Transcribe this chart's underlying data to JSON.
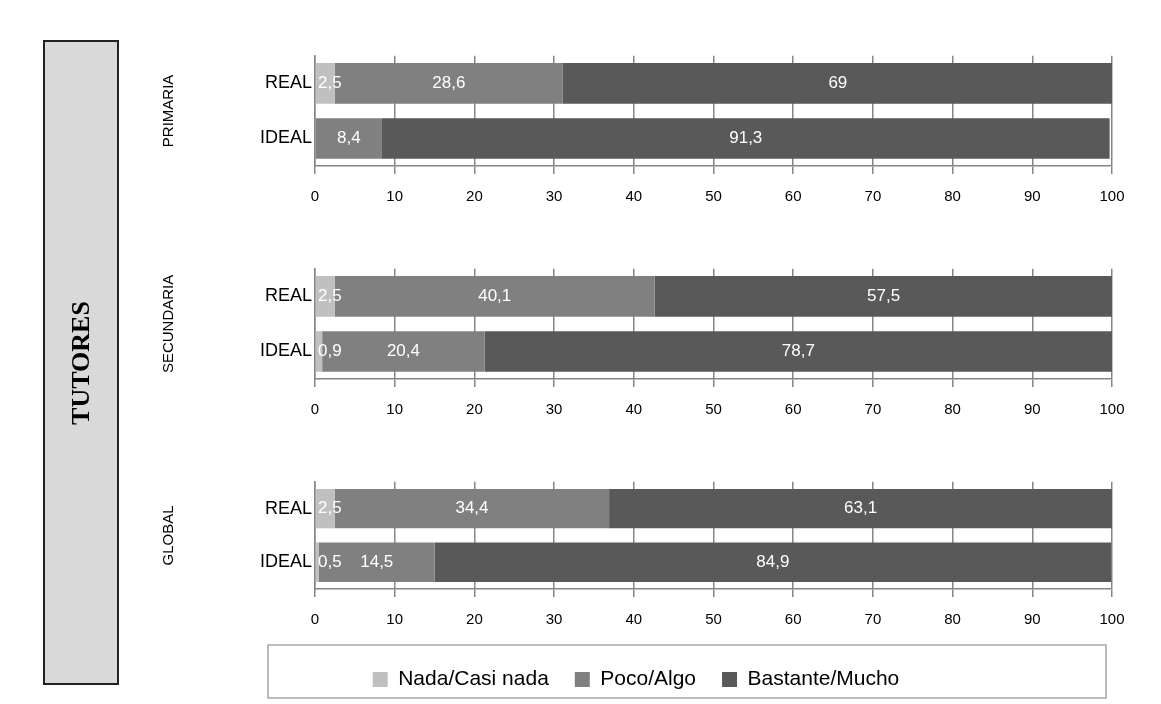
{
  "chart_data": [
    {
      "type": "other",
      "title": "TUTORES"
    },
    {
      "type": "bar",
      "orientation": "horizontal",
      "stacked": true,
      "ylabel": "PRIMARIA",
      "categories": [
        "REAL",
        "IDEAL"
      ],
      "xlim": [
        0,
        100
      ],
      "xticks": [
        0,
        10,
        20,
        30,
        40,
        50,
        60,
        70,
        80,
        90,
        100
      ],
      "grid": "x",
      "legend": false,
      "series": [
        {
          "color": "#c0c0c0",
          "values": [
            2.5,
            null
          ],
          "value_labels": [
            "2,5",
            null
          ]
        },
        {
          "color": "#808080",
          "values": [
            28.6,
            8.4
          ],
          "value_labels": [
            "28,6",
            "8,4"
          ]
        },
        {
          "color": "#595959",
          "values": [
            69,
            91.3
          ],
          "value_labels": [
            "69",
            "91,3"
          ]
        }
      ]
    },
    {
      "type": "bar",
      "orientation": "horizontal",
      "stacked": true,
      "ylabel": "SECUNDARIA",
      "categories": [
        "REAL",
        "IDEAL"
      ],
      "xlim": [
        0,
        100
      ],
      "xticks": [
        0,
        10,
        20,
        30,
        40,
        50,
        60,
        70,
        80,
        90,
        100
      ],
      "grid": "x",
      "legend": false,
      "series": [
        {
          "color": "#c0c0c0",
          "values": [
            2.5,
            0.9
          ],
          "value_labels": [
            "2,5",
            "0,9"
          ]
        },
        {
          "color": "#808080",
          "values": [
            40.1,
            20.4
          ],
          "value_labels": [
            "40,1",
            "20,4"
          ]
        },
        {
          "color": "#595959",
          "values": [
            57.5,
            78.7
          ],
          "value_labels": [
            "57,5",
            "78,7"
          ]
        }
      ]
    },
    {
      "type": "bar",
      "orientation": "horizontal",
      "stacked": true,
      "ylabel": "GLOBAL",
      "categories": [
        "REAL",
        "IDEAL"
      ],
      "xlim": [
        0,
        100
      ],
      "xticks": [
        0,
        10,
        20,
        30,
        40,
        50,
        60,
        70,
        80,
        90,
        100
      ],
      "grid": "x",
      "legend": "bottom",
      "series": [
        {
          "name": "Nada/Casi nada",
          "color": "#c0c0c0",
          "values": [
            2.5,
            0.5
          ],
          "value_labels": [
            "2,5",
            "0,5"
          ]
        },
        {
          "name": "Poco/Algo",
          "color": "#808080",
          "values": [
            34.4,
            14.5
          ],
          "value_labels": [
            "34,4",
            "14,5"
          ]
        },
        {
          "name": "Bastante/Mucho",
          "color": "#595959",
          "values": [
            63.1,
            84.9
          ],
          "value_labels": [
            "63,1",
            "84,9"
          ]
        }
      ]
    }
  ]
}
